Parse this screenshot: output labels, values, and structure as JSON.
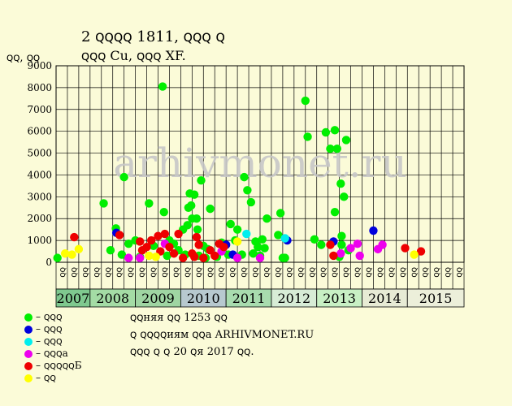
{
  "title_line1": "2 ꞯꞯꞯꞯ 1811, ꞯꞯꞯ ꞯ",
  "title_line2": "ꞯꞯꞯ Cu, ꞯꞯꞯ XF.",
  "y_unit_label": "ꞯꞯ, ꞯꞯ",
  "watermark": "arhivmonet.ru",
  "legend": [
    {
      "label": "– ꞯꞯꞯ",
      "color": "#00ee00"
    },
    {
      "label": "– ꞯꞯꞯ",
      "color": "#0000dd"
    },
    {
      "label": "– ꞯꞯꞯ",
      "color": "#00eeee"
    },
    {
      "label": "– ꞯꞯꞯa",
      "color": "#ee00ee"
    },
    {
      "label": "– ꞯꞯꞯꞯꞯБ",
      "color": "#ee0000"
    },
    {
      "label": "– ꞯꞯ",
      "color": "#ffff00"
    }
  ],
  "notes": [
    "ꞯꞯняя ꞯꞯ 1253 ꞯꞯ",
    "ꞯ ꞯꞯꞯꞯиям ꞯꞯa ARHIVMONET.RU",
    "ꞯꞯꞯ ꞯ ꞯ 20 ꞯя 2017 ꞯꞯ."
  ],
  "chart_data": {
    "type": "scatter",
    "ylim": [
      0,
      9000
    ],
    "yticks": [
      0,
      1000,
      2000,
      3000,
      4000,
      5000,
      6000,
      7000,
      8000,
      9000
    ],
    "grid": true,
    "quarter_labels": [
      "ꞯꞯ",
      "ꞯꞯ",
      "ꞯꞯ",
      "ꞯꞯ",
      "ꞯꞯ",
      "ꞯꞯ",
      "ꞯꞯ",
      "ꞯꞯ",
      "ꞯꞯ",
      "ꞯꞯ",
      "ꞯꞯ",
      "ꞯꞯ",
      "ꞯꞯ",
      "ꞯꞯ",
      "ꞯꞯ",
      "ꞯꞯ",
      "ꞯꞯ",
      "ꞯꞯ",
      "ꞯꞯ",
      "ꞯꞯ",
      "ꞯꞯ",
      "ꞯꞯ",
      "ꞯꞯ",
      "ꞯꞯ",
      "ꞯꞯ",
      "ꞯꞯ",
      "ꞯꞯ",
      "ꞯꞯ",
      "ꞯꞯ",
      "ꞯꞯ",
      "ꞯꞯ",
      "ꞯꞯ",
      "ꞯꞯ",
      "ꞯꞯ",
      "ꞯꞯ",
      "ꞯꞯ"
    ],
    "years": [
      {
        "label": "2007",
        "from": 2007.0,
        "to": 2007.75,
        "color": "#7fc98f"
      },
      {
        "label": "2008",
        "from": 2007.75,
        "to": 2008.75,
        "color": "#a4dca5"
      },
      {
        "label": "2009",
        "from": 2008.75,
        "to": 2009.75,
        "color": "#9fd5a2"
      },
      {
        "label": "2010",
        "from": 2009.75,
        "to": 2010.75,
        "color": "#b7c9cf"
      },
      {
        "label": "2011",
        "from": 2010.75,
        "to": 2011.75,
        "color": "#a8dcae"
      },
      {
        "label": "2012",
        "from": 2011.75,
        "to": 2012.75,
        "color": "#d7ecd6"
      },
      {
        "label": "2013",
        "from": 2012.75,
        "to": 2013.75,
        "color": "#c8f0c4"
      },
      {
        "label": "2014",
        "from": 2013.75,
        "to": 2014.75,
        "color": "#e7ebd5"
      },
      {
        "label": "2015",
        "from": 2014.75,
        "to": 2016.0,
        "color": "#ecefda"
      }
    ],
    "xlim": [
      2007.0,
      2016.0
    ],
    "series": [
      {
        "color": "#00ee00",
        "points": [
          [
            2007.03,
            200
          ],
          [
            2008.05,
            2700
          ],
          [
            2008.2,
            550
          ],
          [
            2008.32,
            1550
          ],
          [
            2008.45,
            350
          ],
          [
            2008.5,
            3900
          ],
          [
            2008.6,
            850
          ],
          [
            2008.75,
            1000
          ],
          [
            2008.85,
            250
          ],
          [
            2009.05,
            2700
          ],
          [
            2009.15,
            750
          ],
          [
            2009.35,
            8050
          ],
          [
            2009.38,
            2300
          ],
          [
            2009.45,
            300
          ],
          [
            2009.5,
            1000
          ],
          [
            2009.6,
            850
          ],
          [
            2009.7,
            550
          ],
          [
            2009.8,
            1500
          ],
          [
            2009.85,
            350
          ],
          [
            2009.9,
            1700
          ],
          [
            2009.92,
            2500
          ],
          [
            2009.95,
            3150
          ],
          [
            2009.98,
            2600
          ],
          [
            2010.0,
            2000
          ],
          [
            2010.05,
            3100
          ],
          [
            2010.1,
            2000
          ],
          [
            2010.12,
            1500
          ],
          [
            2010.15,
            300
          ],
          [
            2010.2,
            3750
          ],
          [
            2010.25,
            750
          ],
          [
            2010.3,
            200
          ],
          [
            2010.35,
            600
          ],
          [
            2010.4,
            2450
          ],
          [
            2010.55,
            250
          ],
          [
            2010.65,
            900
          ],
          [
            2010.8,
            350
          ],
          [
            2010.85,
            1750
          ],
          [
            2010.95,
            1000
          ],
          [
            2011.0,
            1500
          ],
          [
            2011.1,
            350
          ],
          [
            2011.15,
            3900
          ],
          [
            2011.22,
            3300
          ],
          [
            2011.3,
            2750
          ],
          [
            2011.35,
            400
          ],
          [
            2011.4,
            950
          ],
          [
            2011.45,
            700
          ],
          [
            2011.5,
            300
          ],
          [
            2011.55,
            1050
          ],
          [
            2011.6,
            650
          ],
          [
            2011.65,
            2000
          ],
          [
            2011.9,
            1250
          ],
          [
            2011.95,
            2250
          ],
          [
            2012.0,
            200
          ],
          [
            2012.05,
            200
          ],
          [
            2012.5,
            7400
          ],
          [
            2012.55,
            5750
          ],
          [
            2012.7,
            1050
          ],
          [
            2012.85,
            800
          ],
          [
            2012.95,
            5950
          ],
          [
            2013.05,
            5200
          ],
          [
            2013.15,
            6050
          ],
          [
            2013.2,
            5200
          ],
          [
            2013.28,
            3600
          ],
          [
            2013.3,
            1200
          ],
          [
            2013.3,
            800
          ],
          [
            2013.35,
            3000
          ],
          [
            2013.4,
            5600
          ],
          [
            2013.45,
            550
          ],
          [
            2013.15,
            2300
          ],
          [
            2013.25,
            250
          ]
        ]
      },
      {
        "color": "#0000dd",
        "points": [
          [
            2008.33,
            1350
          ],
          [
            2010.75,
            800
          ],
          [
            2010.9,
            350
          ],
          [
            2012.1,
            1000
          ],
          [
            2013.12,
            950
          ],
          [
            2014.0,
            1450
          ]
        ]
      },
      {
        "color": "#00eeee",
        "points": [
          [
            2011.2,
            1300
          ],
          [
            2012.05,
            1100
          ]
        ]
      },
      {
        "color": "#ee00ee",
        "points": [
          [
            2008.6,
            200
          ],
          [
            2008.85,
            200
          ],
          [
            2009.4,
            850
          ],
          [
            2010.65,
            500
          ],
          [
            2011.0,
            200
          ],
          [
            2011.5,
            200
          ],
          [
            2013.28,
            400
          ],
          [
            2013.5,
            650
          ],
          [
            2013.65,
            850
          ],
          [
            2013.7,
            300
          ],
          [
            2014.1,
            600
          ],
          [
            2014.2,
            800
          ]
        ]
      },
      {
        "color": "#ee0000",
        "points": [
          [
            2007.4,
            1150
          ],
          [
            2008.4,
            1250
          ],
          [
            2008.85,
            950
          ],
          [
            2008.9,
            550
          ],
          [
            2009.0,
            700
          ],
          [
            2009.1,
            1000
          ],
          [
            2009.25,
            1200
          ],
          [
            2009.3,
            500
          ],
          [
            2009.4,
            1300
          ],
          [
            2009.5,
            700
          ],
          [
            2009.6,
            400
          ],
          [
            2009.7,
            1300
          ],
          [
            2009.8,
            200
          ],
          [
            2010.0,
            400
          ],
          [
            2010.05,
            250
          ],
          [
            2010.1,
            1150
          ],
          [
            2010.15,
            800
          ],
          [
            2010.25,
            200
          ],
          [
            2010.4,
            550
          ],
          [
            2010.5,
            300
          ],
          [
            2010.6,
            850
          ],
          [
            2010.7,
            700
          ],
          [
            2013.05,
            800
          ],
          [
            2013.12,
            300
          ],
          [
            2014.7,
            650
          ],
          [
            2015.05,
            500
          ]
        ]
      },
      {
        "color": "#ffff00",
        "points": [
          [
            2007.2,
            400
          ],
          [
            2007.35,
            350
          ],
          [
            2007.5,
            600
          ],
          [
            2009.05,
            300
          ],
          [
            2009.2,
            250
          ],
          [
            2011.0,
            950
          ],
          [
            2014.9,
            350
          ]
        ]
      }
    ]
  }
}
